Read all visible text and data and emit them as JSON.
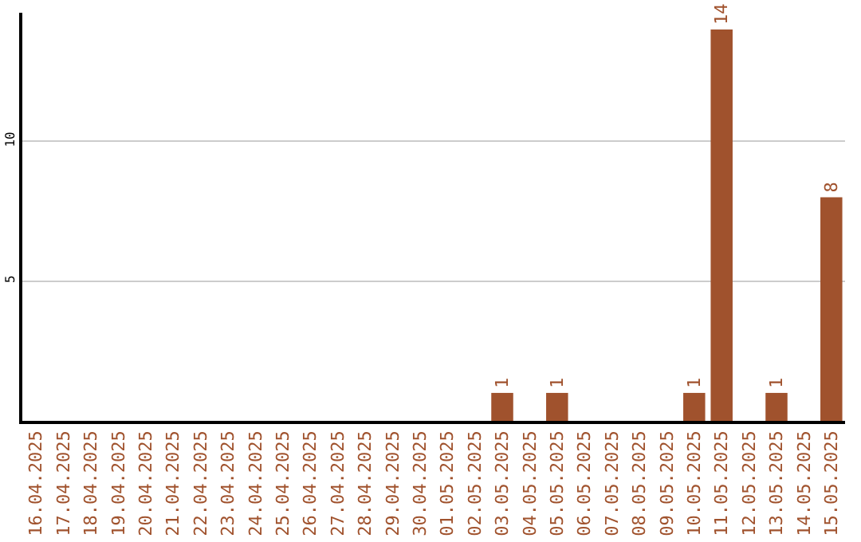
{
  "chart_data": {
    "type": "bar",
    "categories": [
      "16.04.2025",
      "17.04.2025",
      "18.04.2025",
      "19.04.2025",
      "20.04.2025",
      "21.04.2025",
      "22.04.2025",
      "23.04.2025",
      "24.04.2025",
      "25.04.2025",
      "26.04.2025",
      "27.04.2025",
      "28.04.2025",
      "29.04.2025",
      "30.04.2025",
      "01.05.2025",
      "02.05.2025",
      "03.05.2025",
      "04.05.2025",
      "05.05.2025",
      "06.05.2025",
      "07.05.2025",
      "08.05.2025",
      "09.05.2025",
      "10.05.2025",
      "11.05.2025",
      "12.05.2025",
      "13.05.2025",
      "14.05.2025",
      "15.05.2025"
    ],
    "values": [
      0,
      0,
      0,
      0,
      0,
      0,
      0,
      0,
      0,
      0,
      0,
      0,
      0,
      0,
      0,
      0,
      0,
      1,
      0,
      1,
      0,
      0,
      0,
      0,
      1,
      14,
      0,
      1,
      0,
      8
    ],
    "value_labels": [
      null,
      null,
      null,
      null,
      null,
      null,
      null,
      null,
      null,
      null,
      null,
      null,
      null,
      null,
      null,
      null,
      null,
      "1",
      null,
      "1",
      null,
      null,
      null,
      null,
      "1",
      "14",
      null,
      "1",
      null,
      "8"
    ],
    "color": "#a0522d",
    "ylim": [
      0,
      14.6
    ],
    "yticks": [
      5,
      10
    ],
    "grid": "y",
    "legend": false
  }
}
